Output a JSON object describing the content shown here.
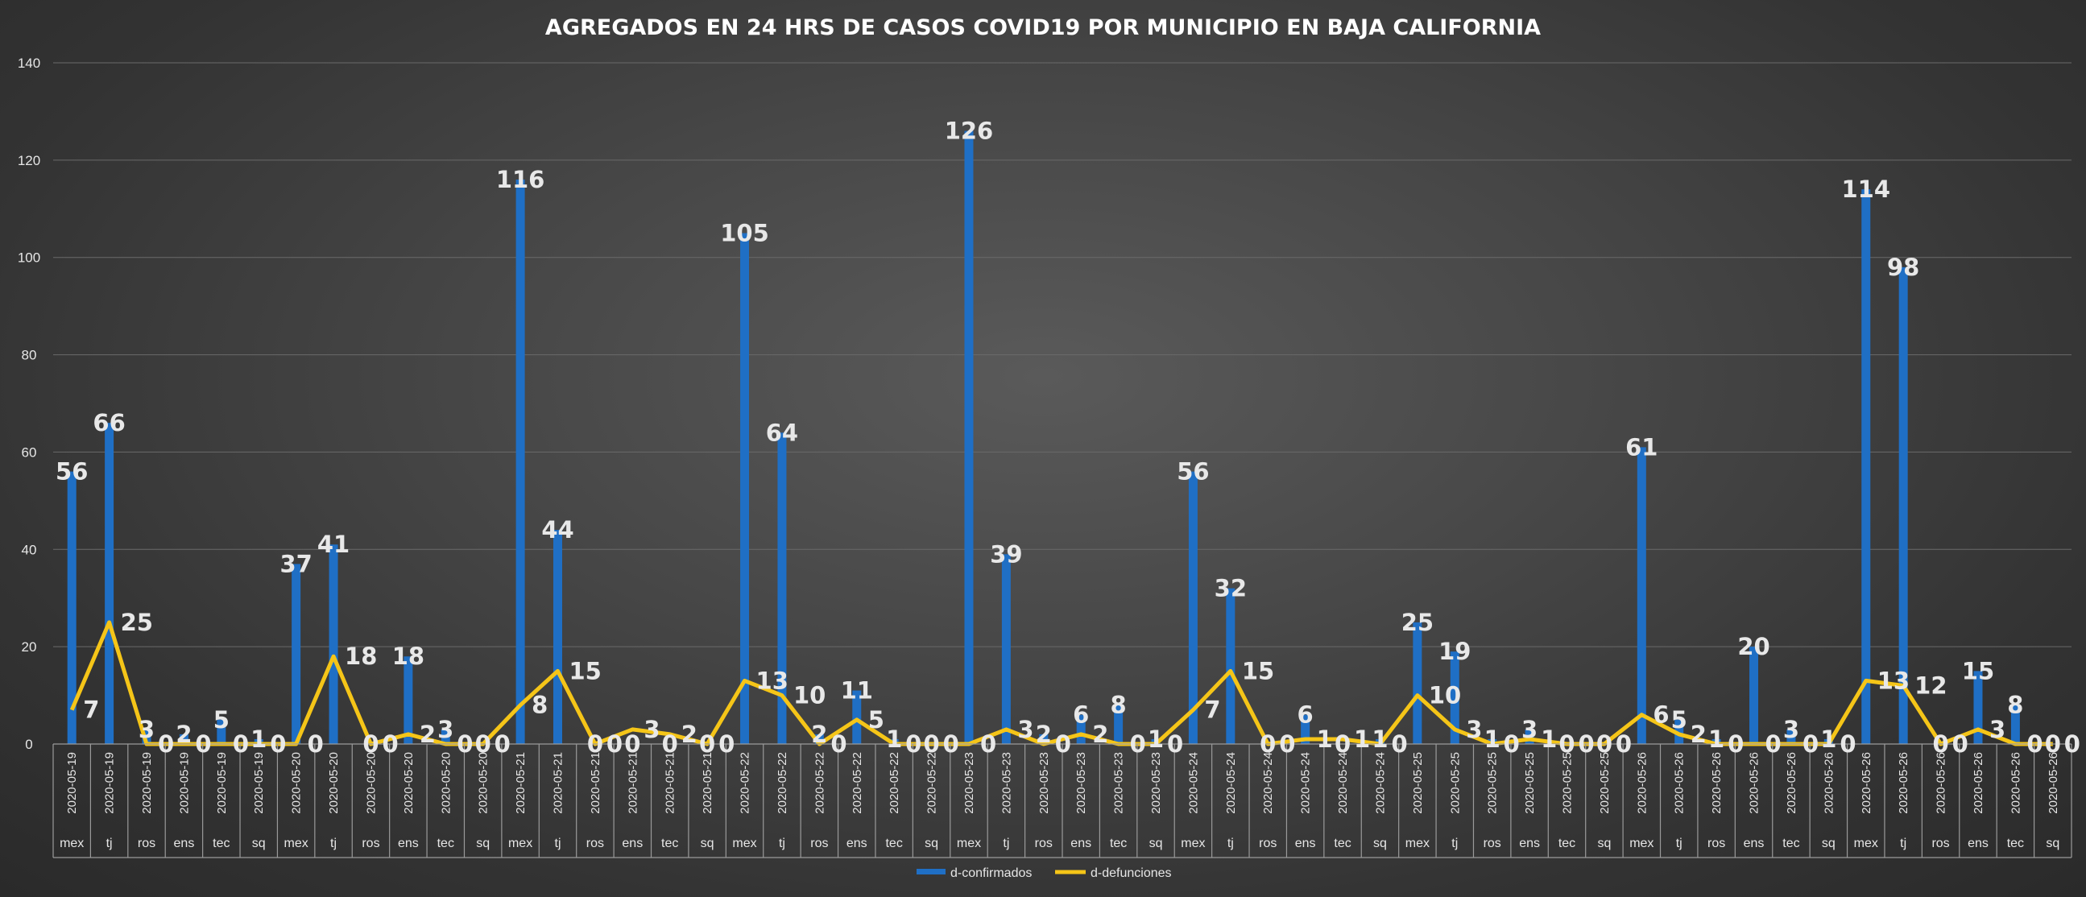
{
  "chart_data": {
    "type": "bar",
    "title": "AGREGADOS EN 24 HRS DE CASOS COVID19 POR MUNICIPIO EN BAJA CALIFORNIA",
    "xlabel": "",
    "ylabel": "",
    "ylim": [
      0,
      140
    ],
    "yticks": [
      0,
      20,
      40,
      60,
      80,
      100,
      120,
      140
    ],
    "grid": true,
    "legend_position": "bottom",
    "categories": [
      {
        "date": "2020-05-19",
        "municipio": "mex"
      },
      {
        "date": "2020-05-19",
        "municipio": "tj"
      },
      {
        "date": "2020-05-19",
        "municipio": "ros"
      },
      {
        "date": "2020-05-19",
        "municipio": "ens"
      },
      {
        "date": "2020-05-19",
        "municipio": "tec"
      },
      {
        "date": "2020-05-19",
        "municipio": "sq"
      },
      {
        "date": "2020-05-20",
        "municipio": "mex"
      },
      {
        "date": "2020-05-20",
        "municipio": "tj"
      },
      {
        "date": "2020-05-20",
        "municipio": "ros"
      },
      {
        "date": "2020-05-20",
        "municipio": "ens"
      },
      {
        "date": "2020-05-20",
        "municipio": "tec"
      },
      {
        "date": "2020-05-20",
        "municipio": "sq"
      },
      {
        "date": "2020-05-21",
        "municipio": "mex"
      },
      {
        "date": "2020-05-21",
        "municipio": "tj"
      },
      {
        "date": "2020-05-21",
        "municipio": "ros"
      },
      {
        "date": "2020-05-21",
        "municipio": "ens"
      },
      {
        "date": "2020-05-21",
        "municipio": "tec"
      },
      {
        "date": "2020-05-21",
        "municipio": "sq"
      },
      {
        "date": "2020-05-22",
        "municipio": "mex"
      },
      {
        "date": "2020-05-22",
        "municipio": "tj"
      },
      {
        "date": "2020-05-22",
        "municipio": "ros"
      },
      {
        "date": "2020-05-22",
        "municipio": "ens"
      },
      {
        "date": "2020-05-22",
        "municipio": "tec"
      },
      {
        "date": "2020-05-22",
        "municipio": "sq"
      },
      {
        "date": "2020-05-23",
        "municipio": "mex"
      },
      {
        "date": "2020-05-23",
        "municipio": "tj"
      },
      {
        "date": "2020-05-23",
        "municipio": "ros"
      },
      {
        "date": "2020-05-23",
        "municipio": "ens"
      },
      {
        "date": "2020-05-23",
        "municipio": "tec"
      },
      {
        "date": "2020-05-23",
        "municipio": "sq"
      },
      {
        "date": "2020-05-24",
        "municipio": "mex"
      },
      {
        "date": "2020-05-24",
        "municipio": "tj"
      },
      {
        "date": "2020-05-24",
        "municipio": "ros"
      },
      {
        "date": "2020-05-24",
        "municipio": "ens"
      },
      {
        "date": "2020-05-24",
        "municipio": "tec"
      },
      {
        "date": "2020-05-24",
        "municipio": "sq"
      },
      {
        "date": "2020-05-25",
        "municipio": "mex"
      },
      {
        "date": "2020-05-25",
        "municipio": "tj"
      },
      {
        "date": "2020-05-25",
        "municipio": "ros"
      },
      {
        "date": "2020-05-25",
        "municipio": "ens"
      },
      {
        "date": "2020-05-25",
        "municipio": "tec"
      },
      {
        "date": "2020-05-25",
        "municipio": "sq"
      },
      {
        "date": "2020-05-26",
        "municipio": "mex"
      },
      {
        "date": "2020-05-26",
        "municipio": "tj"
      },
      {
        "date": "2020-05-26",
        "municipio": "ros"
      },
      {
        "date": "2020-05-26",
        "municipio": "ens"
      },
      {
        "date": "2020-05-26",
        "municipio": "tec"
      },
      {
        "date": "2020-05-26",
        "municipio": "sq"
      },
      {
        "date": "2020-05-26",
        "municipio": "mex"
      },
      {
        "date": "2020-05-26",
        "municipio": "tj"
      },
      {
        "date": "2020-05-26",
        "municipio": "ros"
      },
      {
        "date": "2020-05-26",
        "municipio": "ens"
      },
      {
        "date": "2020-05-26",
        "municipio": "tec"
      },
      {
        "date": "2020-05-26",
        "municipio": "sq"
      }
    ],
    "series": [
      {
        "name": "d-confirmados",
        "type": "bar",
        "color": "#1f6fc5",
        "values": [
          56,
          66,
          3,
          2,
          5,
          1,
          37,
          41,
          0,
          18,
          3,
          0,
          116,
          44,
          0,
          0,
          0,
          0,
          105,
          64,
          2,
          11,
          1,
          0,
          126,
          39,
          2,
          6,
          8,
          1,
          56,
          32,
          0,
          6,
          0,
          1,
          25,
          19,
          1,
          3,
          0,
          0,
          61,
          5,
          1,
          20,
          3,
          1,
          114,
          98,
          0,
          15,
          8,
          0
        ]
      },
      {
        "name": "d-defunciones",
        "type": "line",
        "color": "#f5c518",
        "values": [
          7,
          25,
          0,
          0,
          0,
          0,
          0,
          18,
          0,
          2,
          0,
          0,
          8,
          15,
          0,
          3,
          2,
          0,
          13,
          10,
          0,
          5,
          0,
          0,
          0,
          3,
          0,
          2,
          0,
          0,
          7,
          15,
          0,
          1,
          1,
          0,
          10,
          3,
          0,
          1,
          0,
          0,
          6,
          2,
          0,
          0,
          0,
          0,
          13,
          12,
          0,
          3,
          0,
          0
        ]
      }
    ]
  }
}
